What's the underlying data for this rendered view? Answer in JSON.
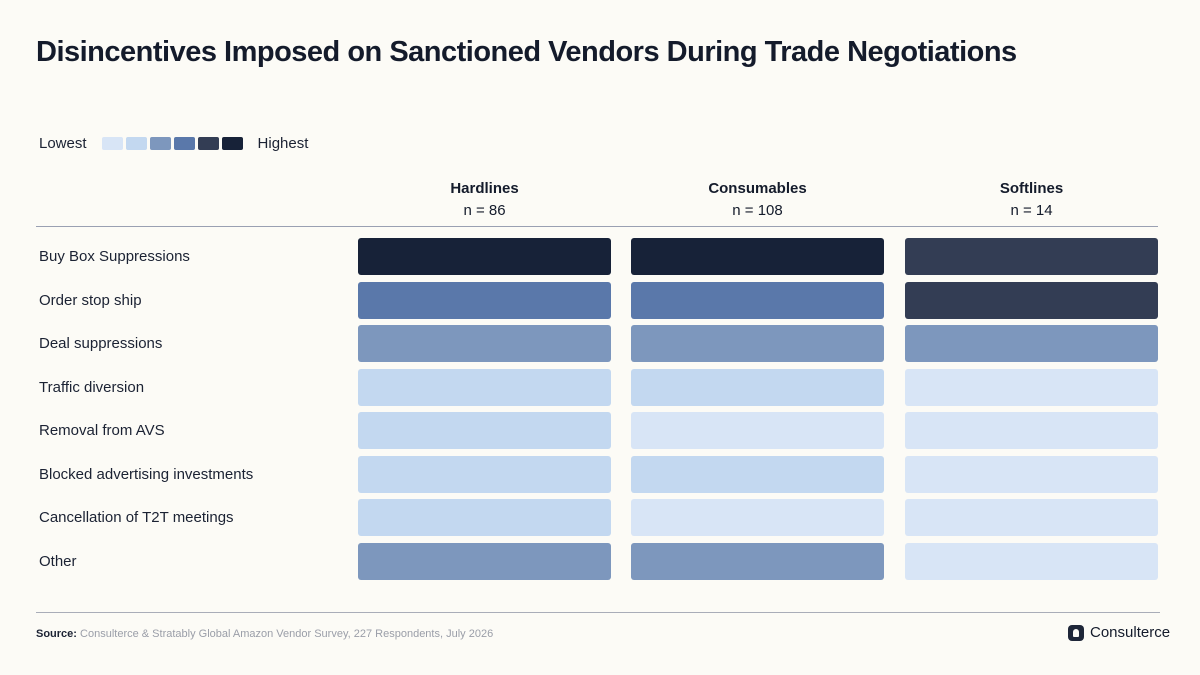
{
  "title": "Disincentives Imposed on Sanctioned Vendors During Trade Negotiations",
  "legend": {
    "low_label": "Lowest",
    "high_label": "Highest",
    "scale_colors": [
      "#d8e5f6",
      "#c3d8f0",
      "#7d97bd",
      "#5a78aa",
      "#333d54",
      "#172238"
    ]
  },
  "chart_data": {
    "type": "heatmap",
    "title": "Disincentives Imposed on Sanctioned Vendors During Trade Negotiations",
    "columns": [
      {
        "name": "Hardlines",
        "n_label": "n = 86"
      },
      {
        "name": "Consumables",
        "n_label": "n = 108"
      },
      {
        "name": "Softlines",
        "n_label": "n = 14"
      }
    ],
    "rows": [
      "Buy Box Suppressions",
      "Order stop ship",
      "Deal suppressions",
      "Traffic diversion",
      "Removal from AVS",
      "Blocked advertising investments",
      "Cancellation of T2T meetings",
      "Other"
    ],
    "levels": [
      [
        6,
        6,
        5
      ],
      [
        4,
        4,
        5
      ],
      [
        3,
        3,
        3
      ],
      [
        2,
        2,
        1
      ],
      [
        2,
        1,
        1
      ],
      [
        2,
        2,
        1
      ],
      [
        2,
        1,
        1
      ],
      [
        3,
        3,
        1
      ]
    ],
    "level_scale": "1 = Lowest, 6 = Highest"
  },
  "footer": {
    "source_label": "Source:",
    "source_text": "Consulterce & Stratably Global Amazon Vendor Survey, 227 Respondents, July 2026"
  },
  "brand": {
    "name": "Consulterce",
    "icon": "consulterce-logo-icon"
  }
}
